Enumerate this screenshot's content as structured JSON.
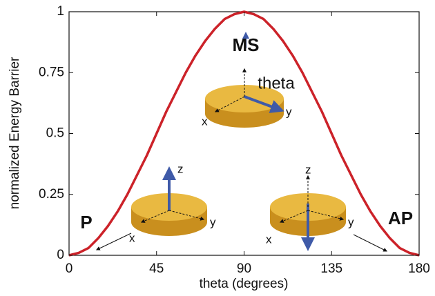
{
  "chart_data": {
    "type": "line",
    "x_label": "theta (degrees)",
    "y_label": "normalized Energy Barrier",
    "x": [
      0,
      5,
      10,
      15,
      20,
      25,
      30,
      35,
      40,
      45,
      50,
      55,
      60,
      65,
      70,
      75,
      80,
      85,
      90,
      95,
      100,
      105,
      110,
      115,
      120,
      125,
      130,
      135,
      140,
      145,
      150,
      155,
      160,
      165,
      170,
      175,
      180
    ],
    "series": [
      {
        "name": "normalized Energy Barrier",
        "color": "#cc2229",
        "values": [
          0,
          0.01,
          0.03,
          0.07,
          0.12,
          0.18,
          0.25,
          0.33,
          0.41,
          0.5,
          0.59,
          0.67,
          0.75,
          0.82,
          0.88,
          0.93,
          0.97,
          0.99,
          1,
          0.99,
          0.97,
          0.93,
          0.88,
          0.82,
          0.75,
          0.67,
          0.59,
          0.5,
          0.41,
          0.33,
          0.25,
          0.18,
          0.12,
          0.07,
          0.03,
          0.01,
          0
        ]
      }
    ],
    "xlim": [
      0,
      180
    ],
    "xticks": [
      0,
      45,
      90,
      135,
      180
    ],
    "ylim": [
      0,
      1
    ],
    "yticks": [
      0,
      0.25,
      0.5,
      0.75,
      1
    ],
    "grid": false,
    "annotations": [
      "P",
      "AP",
      "MS",
      "theta"
    ],
    "axis_letters": [
      "x",
      "y",
      "z"
    ]
  }
}
